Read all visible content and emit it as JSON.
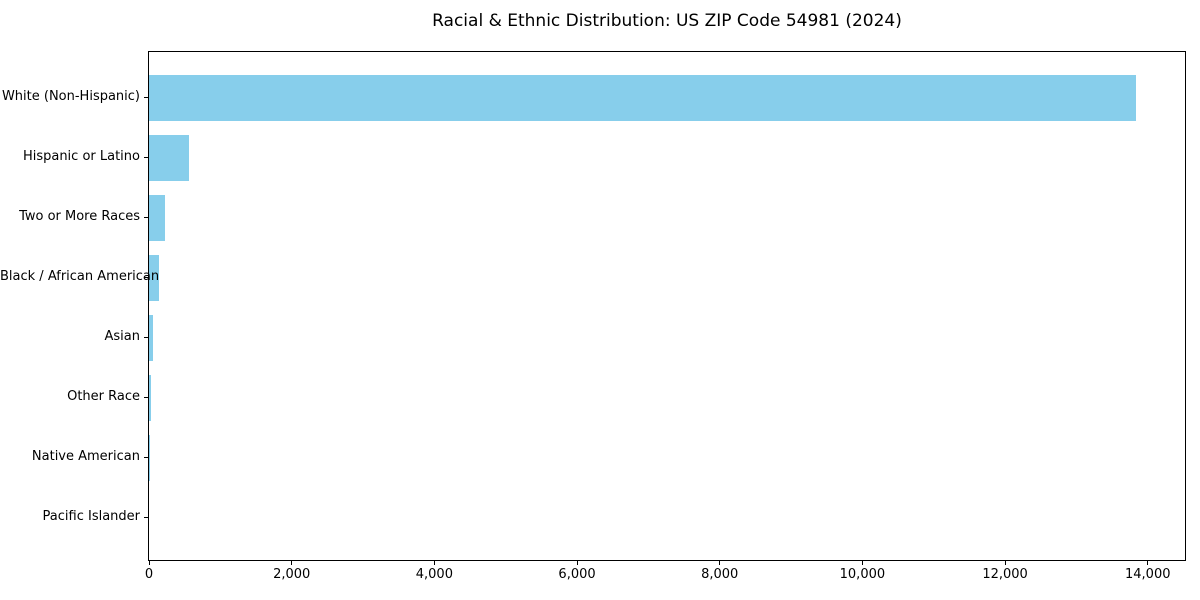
{
  "page": {
    "background_color": "#ffffff"
  },
  "chart_data": {
    "type": "bar",
    "orientation": "horizontal",
    "title": "Racial & Ethnic Distribution: US ZIP Code 54981 (2024)",
    "categories": [
      "White (Non-Hispanic)",
      "Hispanic or Latino",
      "Two or More Races",
      "Black / African American",
      "Asian",
      "Other Race",
      "Native American",
      "Pacific Islander"
    ],
    "values": [
      13830,
      565,
      225,
      140,
      58,
      30,
      12,
      0
    ],
    "xlabel": "",
    "ylabel": "",
    "xlim": [
      0,
      14522
    ],
    "x_ticks": [
      0,
      2000,
      4000,
      6000,
      8000,
      10000,
      12000,
      14000
    ],
    "x_tick_labels": [
      "0",
      "2,000",
      "4,000",
      "6,000",
      "8,000",
      "10,000",
      "12,000",
      "14,000"
    ],
    "grid": false,
    "legend": null,
    "bar_color": "#87CEEB",
    "axis_color": "#000000",
    "text_color": "#000000"
  }
}
